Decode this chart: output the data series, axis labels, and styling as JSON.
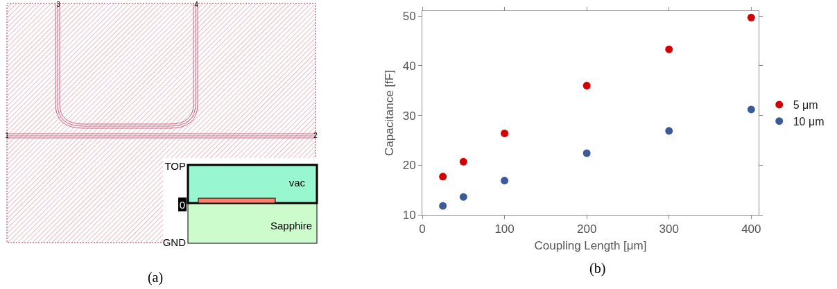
{
  "chart_data": [
    {
      "type": "other",
      "annotations": [
        "3",
        "4",
        "1",
        "2",
        "TOP",
        "vac",
        "0",
        "Sapphire",
        "GND",
        "(a)"
      ]
    },
    {
      "type": "scatter",
      "xlabel": "Coupling Length [μm]",
      "ylabel": "Capacitance [fF]",
      "x": [
        25,
        50,
        100,
        200,
        300,
        400
      ],
      "series": [
        {
          "name": "5 μm",
          "color": "#d40000",
          "values": [
            17.7,
            20.7,
            26.4,
            36.0,
            43.3,
            49.7
          ]
        },
        {
          "name": "10 μm",
          "color": "#3b5a9a",
          "values": [
            11.8,
            13.6,
            16.9,
            22.4,
            26.9,
            31.2
          ]
        }
      ],
      "xlim": [
        0,
        409
      ],
      "ylim": [
        10,
        51
      ],
      "xticks": [
        0,
        100,
        200,
        300,
        400
      ],
      "yticks": [
        10,
        20,
        30,
        40,
        50
      ],
      "marker": "circle",
      "grid": false,
      "legend": "right",
      "annotations": [
        "(b)"
      ]
    }
  ]
}
